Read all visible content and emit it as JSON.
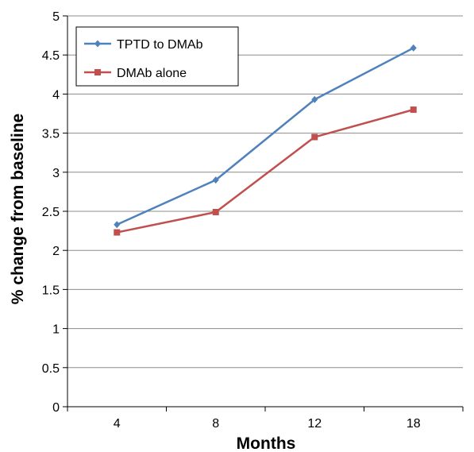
{
  "chart_data": {
    "type": "line",
    "title": "",
    "xlabel": "Months",
    "ylabel": "% change from baseline",
    "categories": [
      "4",
      "8",
      "12",
      "18"
    ],
    "ylim": [
      0,
      5
    ],
    "yticks": [
      "0",
      "0.5",
      "1",
      "1.5",
      "2",
      "2.5",
      "3",
      "3.5",
      "4",
      "4.5",
      "5"
    ],
    "grid": "horizontal",
    "legend_position": "top-left",
    "series": [
      {
        "name": "TPTD to DMAb",
        "color": "#4f81bd",
        "marker": "diamond",
        "values": [
          2.33,
          2.9,
          3.93,
          4.59
        ]
      },
      {
        "name": "DMAb alone",
        "color": "#c0504d",
        "marker": "square",
        "values": [
          2.23,
          2.49,
          3.45,
          3.8
        ]
      }
    ]
  }
}
